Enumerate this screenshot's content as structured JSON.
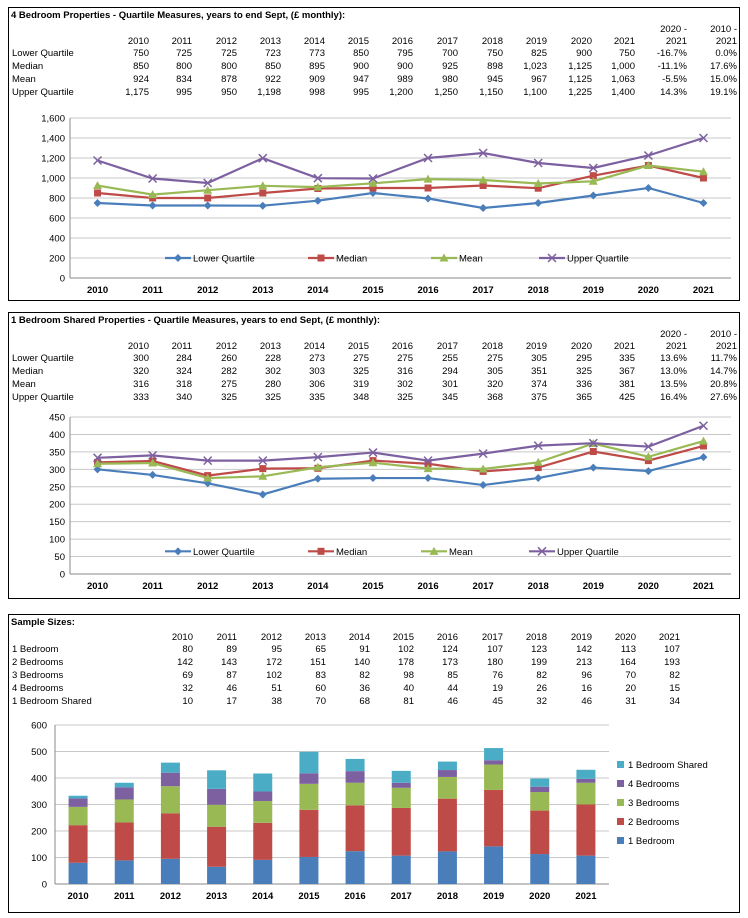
{
  "years": [
    "2010",
    "2011",
    "2012",
    "2013",
    "2014",
    "2015",
    "2016",
    "2017",
    "2018",
    "2019",
    "2020",
    "2021"
  ],
  "change_headers": [
    [
      "2020 -",
      "2021"
    ],
    [
      "2010 -",
      "2021"
    ]
  ],
  "panel1": {
    "title": "4 Bedroom Properties - Quartile Measures, years to end Sept, (£ monthly):",
    "rows": [
      {
        "label": "Lower Quartile",
        "cells": [
          "750",
          "725",
          "725",
          "723",
          "773",
          "850",
          "795",
          "700",
          "750",
          "825",
          "900",
          "750",
          "-16.7%",
          "0.0%"
        ]
      },
      {
        "label": "Median",
        "cells": [
          "850",
          "800",
          "800",
          "850",
          "895",
          "900",
          "900",
          "925",
          "898",
          "1,023",
          "1,125",
          "1,000",
          "-11.1%",
          "17.6%"
        ]
      },
      {
        "label": "Mean",
        "cells": [
          "924",
          "834",
          "878",
          "922",
          "909",
          "947",
          "989",
          "980",
          "945",
          "967",
          "1,125",
          "1,063",
          "-5.5%",
          "15.0%"
        ]
      },
      {
        "label": "Upper Quartile",
        "cells": [
          "1,175",
          "995",
          "950",
          "1,198",
          "998",
          "995",
          "1,200",
          "1,250",
          "1,150",
          "1,100",
          "1,225",
          "1,400",
          "14.3%",
          "19.1%"
        ]
      }
    ]
  },
  "panel2": {
    "title": "1 Bedroom Shared Properties - Quartile Measures, years to end Sept, (£ monthly):",
    "rows": [
      {
        "label": "Lower Quartile",
        "cells": [
          "300",
          "284",
          "260",
          "228",
          "273",
          "275",
          "275",
          "255",
          "275",
          "305",
          "295",
          "335",
          "13.6%",
          "11.7%"
        ]
      },
      {
        "label": "Median",
        "cells": [
          "320",
          "324",
          "282",
          "302",
          "303",
          "325",
          "316",
          "294",
          "305",
          "351",
          "325",
          "367",
          "13.0%",
          "14.7%"
        ]
      },
      {
        "label": "Mean",
        "cells": [
          "316",
          "318",
          "275",
          "280",
          "306",
          "319",
          "302",
          "301",
          "320",
          "374",
          "336",
          "381",
          "13.5%",
          "20.8%"
        ]
      },
      {
        "label": "Upper Quartile",
        "cells": [
          "333",
          "340",
          "325",
          "325",
          "335",
          "348",
          "325",
          "345",
          "368",
          "375",
          "365",
          "425",
          "16.4%",
          "27.6%"
        ]
      }
    ]
  },
  "panel3": {
    "title": "Sample Sizes:",
    "rows": [
      {
        "label": "1 Bedroom",
        "cells": [
          "80",
          "89",
          "95",
          "65",
          "91",
          "102",
          "124",
          "107",
          "123",
          "142",
          "113",
          "107"
        ]
      },
      {
        "label": "2 Bedrooms",
        "cells": [
          "142",
          "143",
          "172",
          "151",
          "140",
          "178",
          "173",
          "180",
          "199",
          "213",
          "164",
          "193"
        ]
      },
      {
        "label": "3 Bedrooms",
        "cells": [
          "69",
          "87",
          "102",
          "83",
          "82",
          "98",
          "85",
          "76",
          "82",
          "96",
          "70",
          "82"
        ]
      },
      {
        "label": "4 Bedrooms",
        "cells": [
          "32",
          "46",
          "51",
          "60",
          "36",
          "40",
          "44",
          "19",
          "26",
          "16",
          "20",
          "15"
        ]
      },
      {
        "label": "1 Bedroom Shared",
        "cells": [
          "10",
          "17",
          "38",
          "70",
          "68",
          "81",
          "46",
          "45",
          "32",
          "46",
          "31",
          "34"
        ]
      }
    ]
  },
  "chart_data": [
    {
      "type": "line",
      "categories": [
        "2010",
        "2011",
        "2012",
        "2013",
        "2014",
        "2015",
        "2016",
        "2017",
        "2018",
        "2019",
        "2020",
        "2021"
      ],
      "ylim": [
        0,
        1600
      ],
      "yticks": [
        "0",
        "200",
        "400",
        "600",
        "800",
        "1,000",
        "1,200",
        "1,400",
        "1,600"
      ],
      "ytick_values": [
        0,
        200,
        400,
        600,
        800,
        1000,
        1200,
        1400,
        1600
      ],
      "grid": true,
      "legend_position": "bottom-inside",
      "series": [
        {
          "name": "Lower Quartile",
          "color": "#4a7ebb",
          "marker": "diamond",
          "values": [
            750,
            725,
            725,
            723,
            773,
            850,
            795,
            700,
            750,
            825,
            900,
            750
          ]
        },
        {
          "name": "Median",
          "color": "#be4b48",
          "marker": "square",
          "values": [
            850,
            800,
            800,
            850,
            895,
            900,
            900,
            925,
            898,
            1023,
            1125,
            1000
          ]
        },
        {
          "name": "Mean",
          "color": "#98b954",
          "marker": "triangle",
          "values": [
            924,
            834,
            878,
            922,
            909,
            947,
            989,
            980,
            945,
            967,
            1125,
            1063
          ]
        },
        {
          "name": "Upper Quartile",
          "color": "#7d60a0",
          "marker": "x",
          "values": [
            1175,
            995,
            950,
            1198,
            998,
            995,
            1200,
            1250,
            1150,
            1100,
            1225,
            1400
          ]
        }
      ]
    },
    {
      "type": "line",
      "categories": [
        "2010",
        "2011",
        "2012",
        "2013",
        "2014",
        "2015",
        "2016",
        "2017",
        "2018",
        "2019",
        "2020",
        "2021"
      ],
      "ylim": [
        0,
        450
      ],
      "yticks": [
        "0",
        "50",
        "100",
        "150",
        "200",
        "250",
        "300",
        "350",
        "400",
        "450"
      ],
      "ytick_values": [
        0,
        50,
        100,
        150,
        200,
        250,
        300,
        350,
        400,
        450
      ],
      "grid": true,
      "legend_position": "bottom-inside",
      "series": [
        {
          "name": "Lower Quartile",
          "color": "#4a7ebb",
          "marker": "diamond",
          "values": [
            300,
            284,
            260,
            228,
            273,
            275,
            275,
            255,
            275,
            305,
            295,
            335
          ]
        },
        {
          "name": "Median",
          "color": "#be4b48",
          "marker": "square",
          "values": [
            320,
            324,
            282,
            302,
            303,
            325,
            316,
            294,
            305,
            351,
            325,
            367
          ]
        },
        {
          "name": "Mean",
          "color": "#98b954",
          "marker": "triangle",
          "values": [
            316,
            318,
            275,
            280,
            306,
            319,
            302,
            301,
            320,
            374,
            336,
            381
          ]
        },
        {
          "name": "Upper Quartile",
          "color": "#7d60a0",
          "marker": "x",
          "values": [
            333,
            340,
            325,
            325,
            335,
            348,
            325,
            345,
            368,
            375,
            365,
            425
          ]
        }
      ]
    },
    {
      "type": "bar",
      "stacked": true,
      "categories": [
        "2010",
        "2011",
        "2012",
        "2013",
        "2014",
        "2015",
        "2016",
        "2017",
        "2018",
        "2019",
        "2020",
        "2021"
      ],
      "ylim": [
        0,
        600
      ],
      "yticks": [
        "0",
        "100",
        "200",
        "300",
        "400",
        "500",
        "600"
      ],
      "ytick_values": [
        0,
        100,
        200,
        300,
        400,
        500,
        600
      ],
      "grid": true,
      "legend_position": "right",
      "series": [
        {
          "name": "1 Bedroom",
          "color": "#4a7ebb",
          "values": [
            80,
            89,
            95,
            65,
            91,
            102,
            124,
            107,
            123,
            142,
            113,
            107
          ]
        },
        {
          "name": "2 Bedrooms",
          "color": "#be4b48",
          "values": [
            142,
            143,
            172,
            151,
            140,
            178,
            173,
            180,
            199,
            213,
            164,
            193
          ]
        },
        {
          "name": "3 Bedrooms",
          "color": "#98b954",
          "values": [
            69,
            87,
            102,
            83,
            82,
            98,
            85,
            76,
            82,
            96,
            70,
            82
          ]
        },
        {
          "name": "4 Bedrooms",
          "color": "#7d60a0",
          "values": [
            32,
            46,
            51,
            60,
            36,
            40,
            44,
            19,
            26,
            16,
            20,
            15
          ]
        },
        {
          "name": "1 Bedroom Shared",
          "color": "#4bacc6",
          "values": [
            10,
            17,
            38,
            70,
            68,
            81,
            46,
            45,
            32,
            46,
            31,
            34
          ]
        }
      ]
    }
  ]
}
